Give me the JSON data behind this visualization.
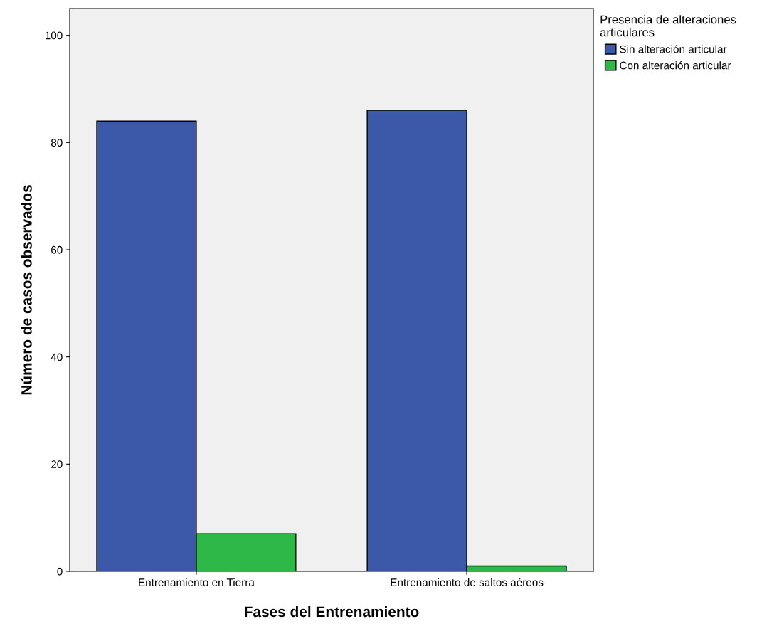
{
  "chart_data": {
    "type": "bar",
    "xlabel": "Fases del Entrenamiento",
    "ylabel": "Número de casos observados",
    "categories": [
      "Entrenamiento en Tierra",
      "Entrenamiento de saltos aéreos"
    ],
    "series": [
      {
        "name": "Sin alteración articular",
        "color": "#3c58a8",
        "values": [
          84,
          86
        ]
      },
      {
        "name": "Con alteración articular",
        "color": "#2eb848",
        "values": [
          7,
          1
        ]
      }
    ],
    "legend_title": "Presencia de alteraciones\narticulares",
    "legend": "right",
    "ylim": [
      0,
      105
    ],
    "yticks": [
      0,
      20,
      40,
      60,
      80,
      100
    ],
    "grid": false
  }
}
